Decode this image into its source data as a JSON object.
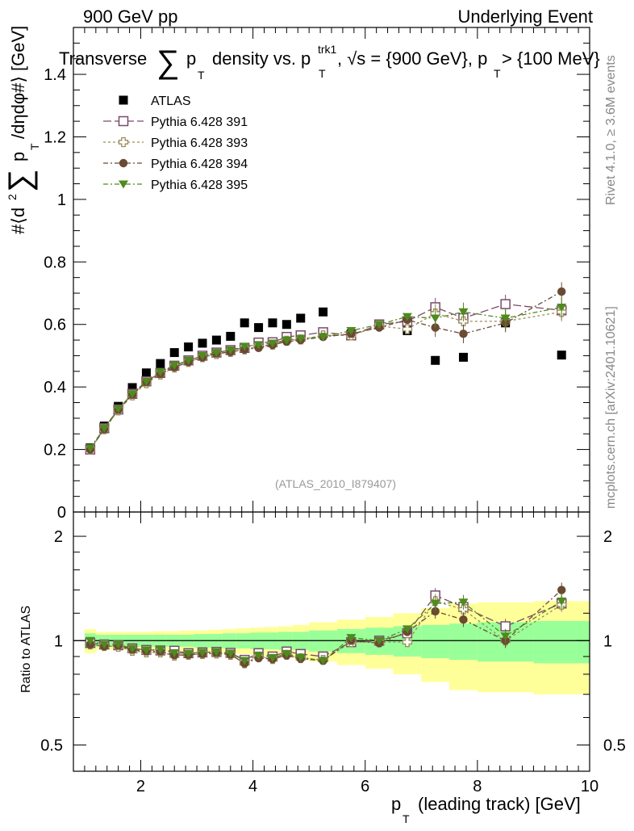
{
  "header": {
    "left": "900 GeV pp",
    "right": "Underlying Event"
  },
  "side_labels": {
    "rivet": "Rivet 4.1.0, ≥ 3.6M events",
    "mcplots": "mcplots.cern.ch [arXiv:2401.10621]"
  },
  "chart_data": [
    {
      "type": "scatter",
      "title": "Transverse ∑ pT density vs. pT^trk1, √s = {900 GeV}, pT > {100 MeV}",
      "title_parts": {
        "t1": "Transverse",
        "sum": "∑",
        "p": "p",
        "T": "T",
        "t2": "density vs. p",
        "sup": "trk1",
        "t3": ", √s = {900 GeV}, p",
        "t4": " > {100 MeV}"
      },
      "ylabel": "#⟨d² ∑ pT /dηdφ#⟩ [GeV]",
      "ylabel_parts": {
        "a": "#⟨d",
        "two": "2",
        "sum": "∑",
        "p": "p",
        "T": "T",
        "b": "/dηdφ#⟩ [GeV]"
      },
      "xlabel": "pT (leading track) [GeV]",
      "xlabel_parts": {
        "p": "p",
        "T": "T",
        "rest": "(leading track) [GeV]"
      },
      "xlim": [
        0.8,
        10.0
      ],
      "ylim": [
        0,
        1.55
      ],
      "yticks": [
        0,
        0.2,
        0.4,
        0.6,
        0.8,
        1,
        1.2,
        1.4
      ],
      "ytick_labels": [
        "0",
        "0.2",
        "0.4",
        "0.6",
        "0.8",
        "1",
        "1.2",
        "1.4"
      ],
      "xticks": [
        2,
        4,
        6,
        8,
        10
      ],
      "xtick_labels": [
        "2",
        "4",
        "6",
        "8",
        "10"
      ],
      "watermark": "(ATLAS_2010_I879407)",
      "legend_position": "top-left",
      "x": [
        1.1,
        1.35,
        1.6,
        1.85,
        2.1,
        2.35,
        2.6,
        2.85,
        3.1,
        3.35,
        3.6,
        3.85,
        4.1,
        4.35,
        4.6,
        4.85,
        5.25,
        5.75,
        6.25,
        6.75,
        7.25,
        7.75,
        8.5,
        9.5
      ],
      "series": [
        {
          "name": "ATLAS",
          "color": "#000000",
          "marker": "square-filled",
          "values": [
            0.205,
            0.275,
            0.338,
            0.398,
            0.445,
            0.475,
            0.51,
            0.528,
            0.54,
            0.55,
            0.562,
            0.605,
            0.59,
            0.605,
            0.6,
            0.62,
            0.64,
            0.57,
            0.6,
            0.58,
            0.485,
            0.495,
            0.605,
            0.502
          ]
        },
        {
          "name": "Pythia 6.428 391",
          "color": "#7a4b6a",
          "marker": "square-open",
          "dash": "10,4",
          "values": [
            0.2,
            0.268,
            0.328,
            0.378,
            0.418,
            0.445,
            0.468,
            0.485,
            0.5,
            0.51,
            0.518,
            0.525,
            0.542,
            0.543,
            0.56,
            0.565,
            0.575,
            0.565,
            0.6,
            0.61,
            0.655,
            0.62,
            0.665,
            0.645
          ]
        },
        {
          "name": "Pythia 6.428 393",
          "color": "#9b8c5a",
          "marker": "cross-open",
          "dash": "3,3",
          "values": [
            0.2,
            0.265,
            0.325,
            0.373,
            0.412,
            0.44,
            0.462,
            0.48,
            0.495,
            0.505,
            0.512,
            0.52,
            0.53,
            0.535,
            0.548,
            0.552,
            0.565,
            0.565,
            0.595,
            0.585,
            0.635,
            0.61,
            0.61,
            0.64
          ]
        },
        {
          "name": "Pythia 6.428 394",
          "color": "#6a4a32",
          "marker": "circle-filled",
          "dash": "6,3,2,3",
          "values": [
            0.2,
            0.265,
            0.327,
            0.375,
            0.415,
            0.442,
            0.463,
            0.48,
            0.495,
            0.507,
            0.512,
            0.52,
            0.525,
            0.535,
            0.545,
            0.55,
            0.56,
            0.57,
            0.59,
            0.615,
            0.59,
            0.57,
            0.605,
            0.705
          ]
        },
        {
          "name": "Pythia 6.428 395",
          "color": "#4f8a1e",
          "marker": "triangle-down-filled",
          "dash": "6,3,2,3",
          "values": [
            0.205,
            0.268,
            0.33,
            0.378,
            0.418,
            0.448,
            0.47,
            0.485,
            0.5,
            0.51,
            0.518,
            0.53,
            0.535,
            0.54,
            0.55,
            0.555,
            0.56,
            0.58,
            0.6,
            0.625,
            0.62,
            0.64,
            0.62,
            0.655
          ]
        }
      ]
    },
    {
      "type": "scatter",
      "title": "Ratio to ATLAS",
      "ylabel": "Ratio to ATLAS",
      "scale": "log",
      "ylim": [
        0.42,
        2.35
      ],
      "yticks": [
        0.5,
        1,
        2
      ],
      "ytick_labels": [
        "0.5",
        "1",
        "2"
      ],
      "xticks": [
        2,
        4,
        6,
        8,
        10
      ],
      "xtick_labels": [
        "2",
        "4",
        "6",
        "8",
        "10"
      ],
      "reference_line": 1.0,
      "band_edges": [
        1.0,
        1.2,
        1.45,
        1.7,
        1.95,
        2.2,
        2.45,
        2.7,
        2.95,
        3.2,
        3.45,
        3.7,
        3.95,
        4.2,
        4.45,
        4.7,
        5.0,
        5.5,
        6.0,
        6.5,
        7.0,
        7.5,
        8.0,
        9.0,
        10.0
      ],
      "band_green_halfwidth": [
        0.05,
        0.04,
        0.04,
        0.04,
        0.04,
        0.04,
        0.04,
        0.04,
        0.045,
        0.045,
        0.05,
        0.05,
        0.055,
        0.055,
        0.06,
        0.06,
        0.07,
        0.08,
        0.09,
        0.1,
        0.11,
        0.12,
        0.13,
        0.14
      ],
      "band_yellow_halfwidth": [
        0.08,
        0.06,
        0.06,
        0.06,
        0.06,
        0.065,
        0.065,
        0.07,
        0.07,
        0.075,
        0.08,
        0.085,
        0.09,
        0.095,
        0.1,
        0.11,
        0.13,
        0.15,
        0.17,
        0.2,
        0.24,
        0.28,
        0.29,
        0.3
      ],
      "series": [
        {
          "name": "Pythia 6.428 391",
          "color": "#7a4b6a",
          "marker": "square-open",
          "dash": "10,4",
          "values": [
            0.985,
            0.975,
            0.97,
            0.95,
            0.94,
            0.937,
            0.935,
            0.92,
            0.925,
            0.928,
            0.922,
            0.88,
            0.92,
            0.9,
            0.93,
            0.915,
            0.9,
            0.99,
            1.0,
            1.05,
            1.35,
            1.25,
            1.1,
            1.28
          ]
        },
        {
          "name": "Pythia 6.428 393",
          "color": "#9b8c5a",
          "marker": "cross-open",
          "dash": "3,3",
          "values": [
            0.975,
            0.965,
            0.96,
            0.935,
            0.925,
            0.925,
            0.905,
            0.91,
            0.915,
            0.918,
            0.91,
            0.86,
            0.9,
            0.885,
            0.91,
            0.89,
            0.88,
            0.99,
            0.99,
            0.99,
            1.3,
            1.23,
            1.0,
            1.27
          ]
        },
        {
          "name": "Pythia 6.428 394",
          "color": "#6a4a32",
          "marker": "circle-filled",
          "dash": "6,3,2,3",
          "values": [
            0.975,
            0.963,
            0.967,
            0.942,
            0.932,
            0.93,
            0.908,
            0.91,
            0.916,
            0.922,
            0.912,
            0.86,
            0.89,
            0.885,
            0.907,
            0.887,
            0.875,
            1.0,
            0.983,
            1.06,
            1.215,
            1.15,
            1.0,
            1.4
          ]
        },
        {
          "name": "Pythia 6.428 395",
          "color": "#4f8a1e",
          "marker": "triangle-down-filled",
          "dash": "6,3,2,3",
          "values": [
            1.0,
            0.975,
            0.975,
            0.95,
            0.94,
            0.943,
            0.922,
            0.918,
            0.925,
            0.928,
            0.92,
            0.876,
            0.907,
            0.893,
            0.917,
            0.895,
            0.875,
            1.02,
            1.0,
            1.08,
            1.28,
            1.29,
            1.03,
            1.3
          ]
        }
      ]
    }
  ]
}
